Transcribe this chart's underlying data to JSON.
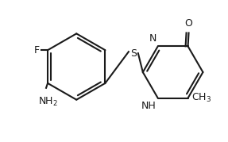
{
  "background": "#ffffff",
  "line_color": "#1a1a1a",
  "line_width": 1.5,
  "figsize": [
    2.87,
    1.79
  ],
  "dpi": 100,
  "xlim": [
    0,
    287
  ],
  "ylim": [
    0,
    179
  ]
}
